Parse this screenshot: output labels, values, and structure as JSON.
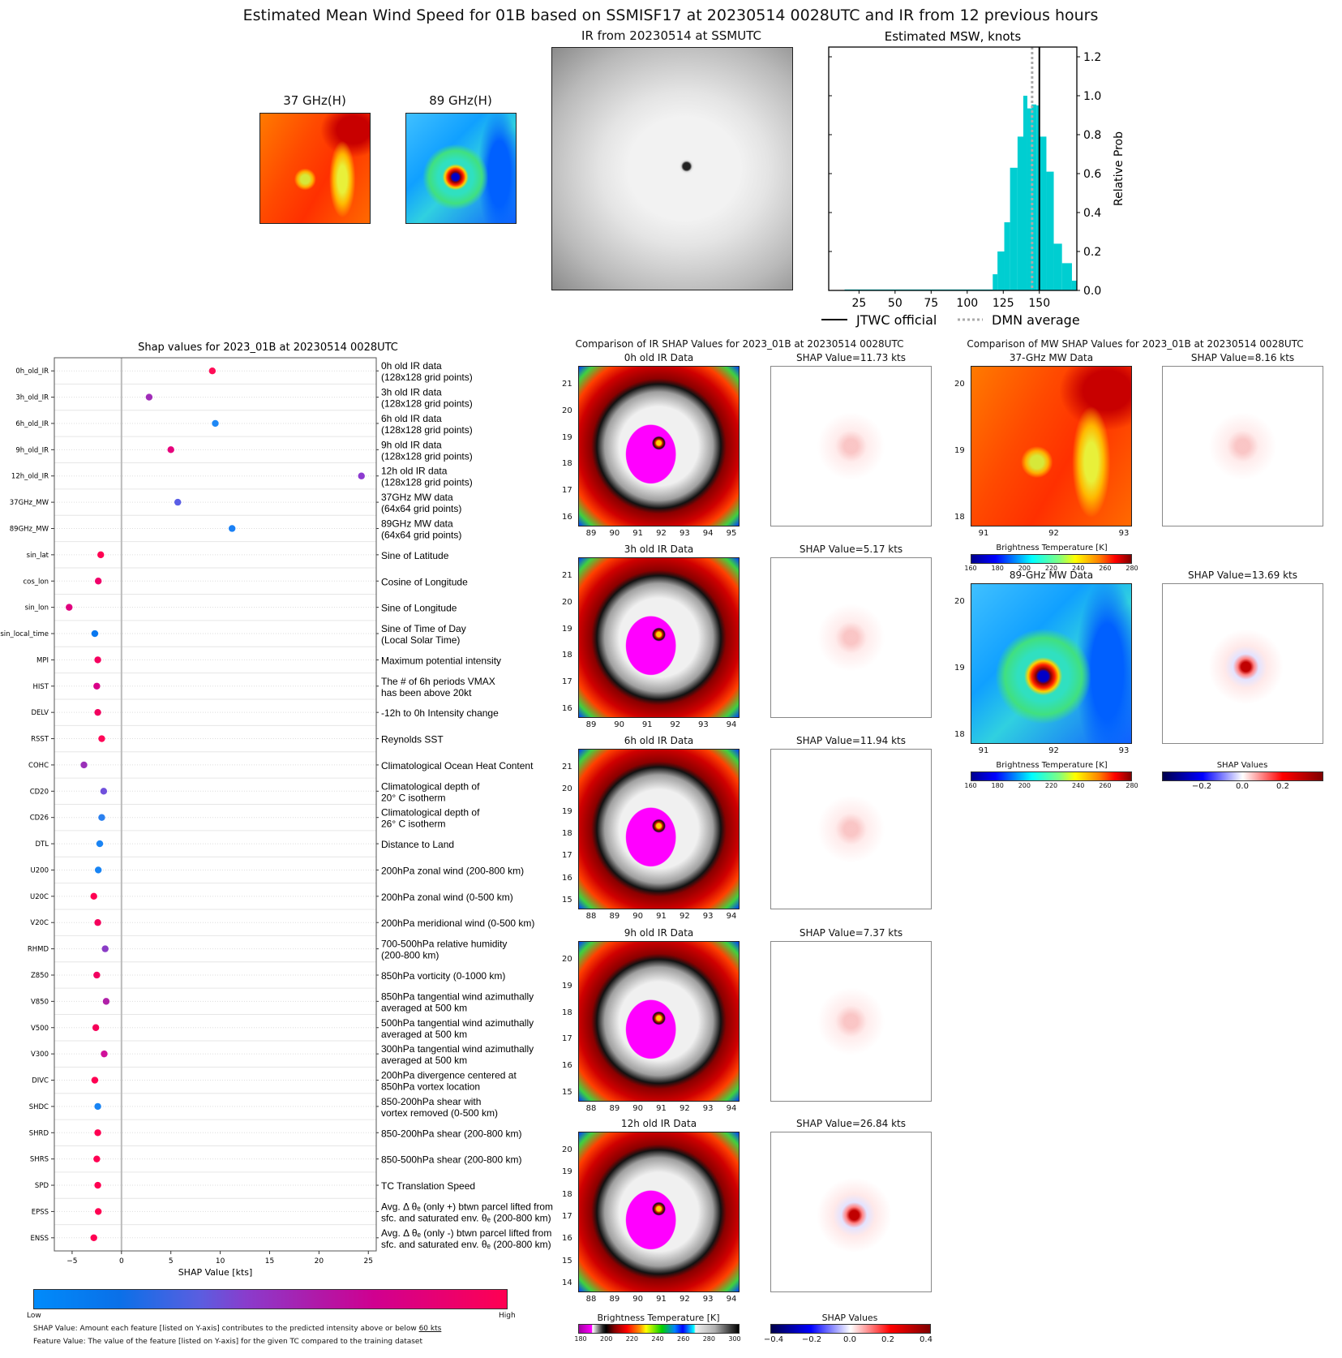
{
  "title": "Estimated Mean Wind Speed for 01B based on SSMISF17 at 20230514 0028UTC and IR from 12 previous hours",
  "top_panels": {
    "mw37_title": "37 GHz(H)",
    "mw89_title": "89 GHz(H)",
    "ir_title": "IR from 20230514 at  SSMUTC"
  },
  "chart_data": [
    {
      "type": "bar",
      "title": "Estimated MSW, knots",
      "xlabel": "",
      "ylabel": "Relative Prob",
      "xlim": [
        4,
        176
      ],
      "ylim": [
        0,
        1.25
      ],
      "xticks": [
        25,
        50,
        75,
        100,
        125,
        150
      ],
      "yticks": [
        0.0,
        0.2,
        0.4,
        0.6,
        0.8,
        1.0,
        1.2
      ],
      "bars": [
        {
          "x0": 15,
          "x1": 117.7,
          "value": 0.005
        },
        {
          "x0": 117.7,
          "x1": 121,
          "value": 0.083
        },
        {
          "x0": 121,
          "x1": 125.7,
          "value": 0.2
        },
        {
          "x0": 125.7,
          "x1": 129.7,
          "value": 0.35
        },
        {
          "x0": 129.7,
          "x1": 134.9,
          "value": 0.63
        },
        {
          "x0": 134.9,
          "x1": 138.9,
          "value": 0.79
        },
        {
          "x0": 138.9,
          "x1": 141.7,
          "value": 1.0
        },
        {
          "x0": 141.7,
          "x1": 144.6,
          "value": 0.935
        },
        {
          "x0": 144.6,
          "x1": 148,
          "value": 0.955
        },
        {
          "x0": 148,
          "x1": 150.3,
          "value": 0.95
        },
        {
          "x0": 150.3,
          "x1": 154.9,
          "value": 0.79
        },
        {
          "x0": 154.9,
          "x1": 160,
          "value": 0.61
        },
        {
          "x0": 160,
          "x1": 165.7,
          "value": 0.24
        },
        {
          "x0": 165.7,
          "x1": 172.6,
          "value": 0.14
        },
        {
          "x0": 172.6,
          "x1": 176,
          "value": 0.05
        }
      ],
      "bar_color": "#00ced1",
      "lines": [
        {
          "name": "JTWC official",
          "x": 150,
          "style": "solid",
          "color": "#000000"
        },
        {
          "name": "DMN average",
          "x": 145,
          "style": "dotted",
          "color": "#aaaaaa"
        }
      ],
      "legend": {
        "position": "bottom",
        "entries": [
          "JTWC official",
          "DMN average"
        ]
      }
    },
    {
      "type": "scatter",
      "title": "Shap values for 2023_01B at 20230514 0028UTC",
      "xlabel": "SHAP Value [kts]",
      "xlim": [
        -6.8,
        25.8
      ],
      "xticks": [
        -5,
        0,
        5,
        10,
        15,
        20,
        25
      ],
      "features": [
        {
          "name": "0h_old_IR",
          "desc": [
            "0h old IR data",
            "(128x128 grid points)"
          ],
          "value": 9.2,
          "color": "#ff0d57"
        },
        {
          "name": "3h_old_IR",
          "desc": [
            "3h old IR data",
            "(128x128 grid points)"
          ],
          "value": 2.8,
          "color": "#a02cb8"
        },
        {
          "name": "6h_old_IR",
          "desc": [
            "6h old IR data",
            "(128x128 grid points)"
          ],
          "value": 9.5,
          "color": "#1e88f5"
        },
        {
          "name": "9h_old_IR",
          "desc": [
            "9h old IR data",
            "(128x128 grid points)"
          ],
          "value": 5.0,
          "color": "#e6007c"
        },
        {
          "name": "12h_old_IR",
          "desc": [
            "12h old IR data",
            "(128x128 grid points)"
          ],
          "value": 24.3,
          "color": "#8c3ad0"
        },
        {
          "name": "37GHz_MW",
          "desc": [
            "37GHz MW data",
            "(64x64 grid points)"
          ],
          "value": 5.7,
          "color": "#5a5ee6"
        },
        {
          "name": "89GHz_MW",
          "desc": [
            "89GHz MW data",
            "(64x64 grid points)"
          ],
          "value": 11.2,
          "color": "#1a80f5"
        },
        {
          "name": "sin_lat",
          "desc": [
            "Sine of Latitude"
          ],
          "value": -2.1,
          "color": "#ff0052"
        },
        {
          "name": "cos_lon",
          "desc": [
            "Cosine of Longitude"
          ],
          "value": -2.35,
          "color": "#f0006a"
        },
        {
          "name": "sin_lon",
          "desc": [
            "Sine of Longitude"
          ],
          "value": -5.3,
          "color": "#e0007e"
        },
        {
          "name": "sin_local_time",
          "desc": [
            "Sine of Time of Day",
            "(Local Solar Time)"
          ],
          "value": -2.7,
          "color": "#0a78f0"
        },
        {
          "name": "MPI",
          "desc": [
            "Maximum potential intensity"
          ],
          "value": -2.4,
          "color": "#f5005f"
        },
        {
          "name": "HIST",
          "desc": [
            "The # of 6h periods VMAX",
            "has been above 20kt"
          ],
          "value": -2.5,
          "color": "#d90088"
        },
        {
          "name": "DELV",
          "desc": [
            "-12h to 0h Intensity change"
          ],
          "value": -2.4,
          "color": "#f2005f"
        },
        {
          "name": "RSST",
          "desc": [
            "Reynolds SST"
          ],
          "value": -2.0,
          "color": "#ff0858"
        },
        {
          "name": "COHC",
          "desc": [
            "Climatological Ocean Heat Content"
          ],
          "value": -3.8,
          "color": "#9a30b8"
        },
        {
          "name": "CD20",
          "desc": [
            "Climatological depth of",
            "20° C isotherm"
          ],
          "value": -1.8,
          "color": "#7050dc"
        },
        {
          "name": "CD26",
          "desc": [
            "Climatological depth of",
            "26° C isotherm"
          ],
          "value": -2.0,
          "color": "#2a80f0"
        },
        {
          "name": "DTL",
          "desc": [
            "Distance to Land"
          ],
          "value": -2.2,
          "color": "#1a84f4"
        },
        {
          "name": "U200",
          "desc": [
            "200hPa zonal wind (200-800 km)"
          ],
          "value": -2.35,
          "color": "#1884f4"
        },
        {
          "name": "U20C",
          "desc": [
            "200hPa zonal wind (0-500 km)"
          ],
          "value": -2.8,
          "color": "#ff0052"
        },
        {
          "name": "V20C",
          "desc": [
            "200hPa meridional wind (0-500 km)"
          ],
          "value": -2.4,
          "color": "#f5005c"
        },
        {
          "name": "RHMD",
          "desc": [
            "700-500hPa relative humidity",
            "(200-800 km)"
          ],
          "value": -1.65,
          "color": "#8a3cc6"
        },
        {
          "name": "Z850",
          "desc": [
            "850hPa vorticity (0-1000 km)"
          ],
          "value": -2.5,
          "color": "#f20060"
        },
        {
          "name": "V850",
          "desc": [
            "850hPa tangential wind azimuthally",
            "averaged at 500 km"
          ],
          "value": -1.55,
          "color": "#b020a8"
        },
        {
          "name": "V500",
          "desc": [
            "500hPa tangential wind azimuthally",
            "averaged at 500 km"
          ],
          "value": -2.6,
          "color": "#f50058"
        },
        {
          "name": "V300",
          "desc": [
            "300hPa tangential wind azimuthally",
            "averaged at 500 km"
          ],
          "value": -1.75,
          "color": "#d0109a"
        },
        {
          "name": "DIVC",
          "desc": [
            "200hPa divergence centered at",
            "850hPa vortex location"
          ],
          "value": -2.7,
          "color": "#ff0052"
        },
        {
          "name": "SHDC",
          "desc": [
            "850-200hPa shear with",
            "vortex removed (0-500 km)"
          ],
          "value": -2.4,
          "color": "#1884f4"
        },
        {
          "name": "SHRD",
          "desc": [
            "850-200hPa shear (200-800 km)"
          ],
          "value": -2.4,
          "color": "#ff0052"
        },
        {
          "name": "SHRS",
          "desc": [
            "850-500hPa shear (200-800 km)"
          ],
          "value": -2.5,
          "color": "#ff0052"
        },
        {
          "name": "SPD",
          "desc": [
            "TC Translation Speed"
          ],
          "value": -2.4,
          "color": "#ff0052"
        },
        {
          "name": "EPSS",
          "desc": [
            "Avg. Δ θₑ (only +) btwn parcel lifted from",
            "sfc. and saturated env. θₑ (200-800 km)"
          ],
          "value": -2.35,
          "color": "#ff0052"
        },
        {
          "name": "ENSS",
          "desc": [
            "Avg. Δ θₑ (only -) btwn parcel lifted from",
            "sfc. and saturated env. θₑ (200-800 km)"
          ],
          "value": -2.8,
          "color": "#ff0052"
        }
      ]
    }
  ],
  "feature_colorbar": {
    "low": "Low",
    "high": "High",
    "note1_prefix": "SHAP Value: Amount each feature [listed on Y-axis] contributes to the predicted intensity above or below ",
    "note1_link": "60 kts",
    "note2": "Feature Value: The value of the feature [listed on Y-axis] for the given TC compared to the training dataset"
  },
  "ir_comparison": {
    "title": "Comparison of IR SHAP Values for 2023_01B at 20230514 0028UTC",
    "panels": [
      {
        "title": "0h old IR Data",
        "shap_title": "SHAP Value=11.73 kts",
        "yticks": [
          "21",
          "20",
          "19",
          "18",
          "17",
          "16"
        ],
        "xticks": [
          "89",
          "90",
          "91",
          "92",
          "93",
          "94",
          "95"
        ]
      },
      {
        "title": "3h old IR Data",
        "shap_title": "SHAP Value=5.17 kts",
        "yticks": [
          "21",
          "20",
          "19",
          "18",
          "17",
          "16"
        ],
        "xticks": [
          "89",
          "90",
          "91",
          "92",
          "93",
          "94"
        ]
      },
      {
        "title": "6h old IR Data",
        "shap_title": "SHAP Value=11.94 kts",
        "yticks": [
          "21",
          "20",
          "19",
          "18",
          "17",
          "16",
          "15"
        ],
        "xticks": [
          "88",
          "89",
          "90",
          "91",
          "92",
          "93",
          "94"
        ]
      },
      {
        "title": "9h old IR Data",
        "shap_title": "SHAP Value=7.37 kts",
        "yticks": [
          "20",
          "19",
          "18",
          "17",
          "16",
          "15"
        ],
        "xticks": [
          "88",
          "89",
          "90",
          "91",
          "92",
          "93",
          "94"
        ]
      },
      {
        "title": "12h old IR Data",
        "shap_title": "SHAP Value=26.84 kts",
        "yticks": [
          "20",
          "19",
          "18",
          "17",
          "16",
          "15",
          "14"
        ],
        "xticks": [
          "88",
          "89",
          "90",
          "91",
          "92",
          "93",
          "94"
        ]
      }
    ],
    "bt_colorbar": {
      "label": "Brightness Temperature [K]",
      "ticks": [
        "180",
        "200",
        "220",
        "240",
        "260",
        "280",
        "300"
      ]
    },
    "shap_colorbar": {
      "label": "SHAP Values",
      "ticks": [
        "−0.4",
        "−0.2",
        "0.0",
        "0.2",
        "0.4"
      ]
    }
  },
  "mw_comparison": {
    "title": "Comparison of MW SHAP Values for 2023_01B at 20230514 0028UTC",
    "panels": [
      {
        "title": "37-GHz MW Data",
        "shap_title": "SHAP Value=8.16 kts",
        "yticks": [
          "20",
          "19",
          "18"
        ],
        "xticks": [
          "91",
          "92",
          "93"
        ]
      },
      {
        "title": "89-GHz MW Data",
        "shap_title": "SHAP Value=13.69 kts",
        "yticks": [
          "20",
          "19",
          "18"
        ],
        "xticks": [
          "91",
          "92",
          "93"
        ]
      }
    ],
    "bt_colorbar": {
      "label": "Brightness Temperature [K]",
      "ticks": [
        "160",
        "180",
        "200",
        "220",
        "240",
        "260",
        "280"
      ]
    },
    "shap_colorbar": {
      "label": "SHAP Values",
      "ticks": [
        "−0.2",
        "0.0",
        "0.2"
      ]
    }
  }
}
